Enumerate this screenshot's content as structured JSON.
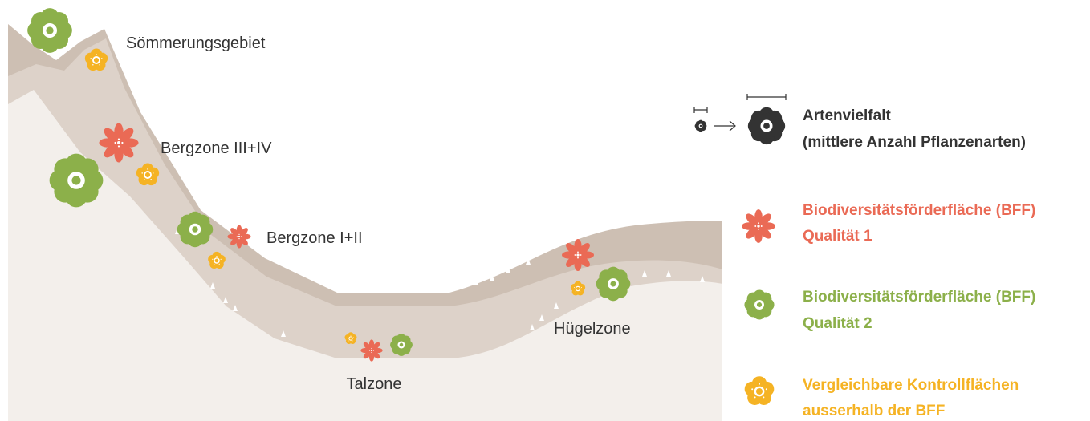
{
  "zones": [
    "Sömmerungsgebiet",
    "Bergzone III+IV",
    "Bergzone I+II",
    "Hügelzone",
    "Talzone"
  ],
  "legend": {
    "size": {
      "title": "Artenvielfalt",
      "subtitle": "(mittlere Anzahl Pflanzenarten)"
    },
    "items": [
      {
        "line1": "Biodiversitätsförderfläche (BFF)",
        "line2": "Qualität 1"
      },
      {
        "line1": "Biodiversitätsförderfläche (BFF)",
        "line2": "Qualität 2"
      },
      {
        "line1": "Vergleichbare Kontrollflächen",
        "line2": "ausserhalb der BFF"
      }
    ]
  }
}
